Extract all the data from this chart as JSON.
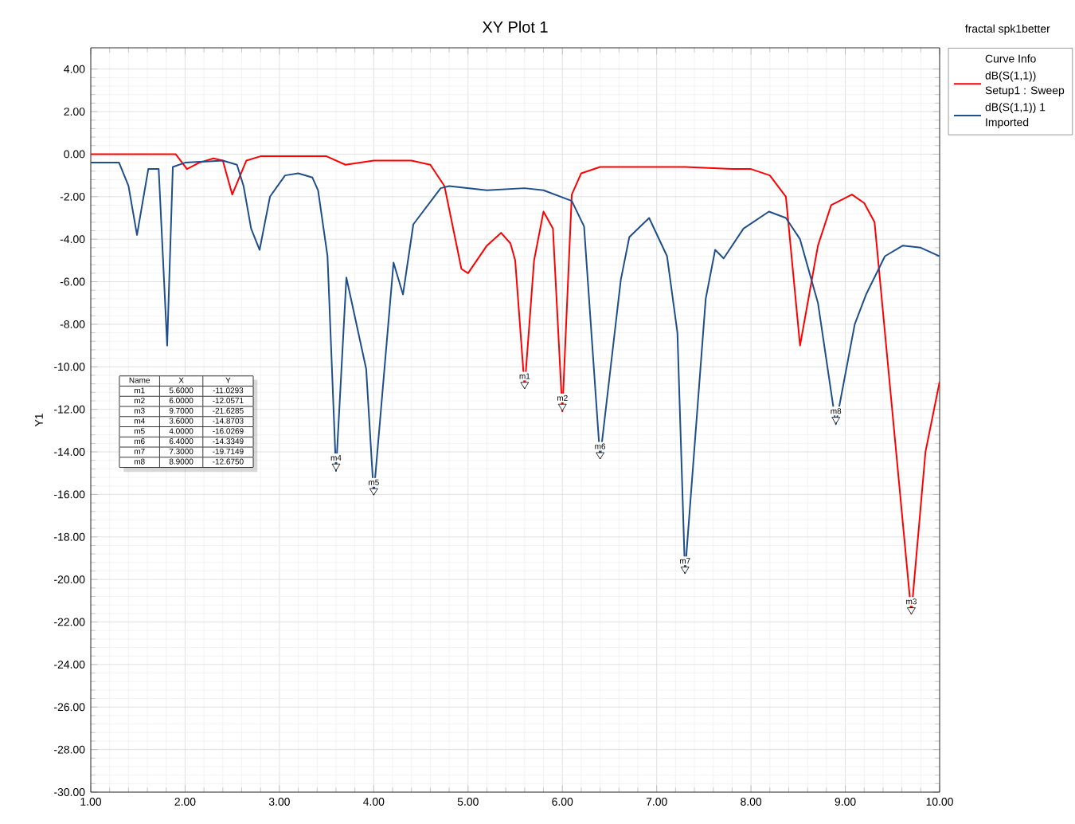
{
  "chart_data": {
    "type": "line",
    "title": "XY Plot 1",
    "ylabel": "Y1",
    "legend_title": "Curve Info",
    "legend": "top right",
    "grid": true,
    "marker": "none",
    "line_style": "solid",
    "xlim": [
      1,
      10
    ],
    "ylim": [
      -30,
      5
    ],
    "xticks": [
      {
        "value": 1,
        "label": "1.00"
      },
      {
        "value": 2,
        "label": "2.00"
      },
      {
        "value": 3,
        "label": "3.00"
      },
      {
        "value": 4,
        "label": "4.00"
      },
      {
        "value": 5,
        "label": "5.00"
      },
      {
        "value": 6,
        "label": "6.00"
      },
      {
        "value": 7,
        "label": "7.00"
      },
      {
        "value": 8,
        "label": "8.00"
      },
      {
        "value": 9,
        "label": "9.00"
      },
      {
        "value": 10,
        "label": "10.00"
      }
    ],
    "yticks": [
      {
        "value": 4,
        "label": "4.00"
      },
      {
        "value": 2,
        "label": "2.00"
      },
      {
        "value": 0,
        "label": "0.00"
      },
      {
        "value": -2,
        "label": "-2.00"
      },
      {
        "value": -4,
        "label": "-4.00"
      },
      {
        "value": -6,
        "label": "-6.00"
      },
      {
        "value": -8,
        "label": "-8.00"
      },
      {
        "value": -10,
        "label": "-10.00"
      },
      {
        "value": -12,
        "label": "-12.00"
      },
      {
        "value": -14,
        "label": "-14.00"
      },
      {
        "value": -16,
        "label": "-16.00"
      },
      {
        "value": -18,
        "label": "-18.00"
      },
      {
        "value": -20,
        "label": "-20.00"
      },
      {
        "value": -22,
        "label": "-22.00"
      },
      {
        "value": -24,
        "label": "-24.00"
      },
      {
        "value": -26,
        "label": "-26.00"
      },
      {
        "value": -28,
        "label": "-28.00"
      },
      {
        "value": -30,
        "label": "-30.00"
      }
    ],
    "series": [
      {
        "name": "dB(S(1,1))",
        "color": "#ff0000",
        "x": [
          1.0,
          1.9,
          2.02,
          2.15,
          2.3,
          2.4,
          2.5,
          2.65,
          2.8,
          3.5,
          3.7,
          4.0,
          4.4,
          4.6,
          4.75,
          4.93,
          5.0,
          5.2,
          5.35,
          5.45,
          5.5,
          5.6,
          5.7,
          5.8,
          5.9,
          6.0,
          6.1,
          6.2,
          6.4,
          7.3,
          7.8,
          8.0,
          8.2,
          8.37,
          8.52,
          8.71,
          8.85,
          9.07,
          9.2,
          9.31,
          9.7,
          9.85,
          10.0
        ],
        "values": [
          0,
          0,
          -0.7,
          -0.4,
          -0.2,
          -0.3,
          -1.9,
          -0.3,
          -0.1,
          -0.1,
          -0.5,
          -0.3,
          -0.3,
          -0.5,
          -1.5,
          -5.4,
          -5.6,
          -4.3,
          -3.7,
          -4.2,
          -5.0,
          -11.0,
          -5.0,
          -2.7,
          -3.5,
          -12.1,
          -1.9,
          -0.9,
          -0.6,
          -0.6,
          -0.7,
          -0.7,
          -1.0,
          -2.0,
          -9.0,
          -4.3,
          -2.4,
          -1.9,
          -2.3,
          -3.2,
          -21.6,
          -14.0,
          -10.7
        ]
      },
      {
        "name": "dB(S(1,1)) 1",
        "color": "#1f4e8c",
        "x": [
          1.0,
          1.3,
          1.4,
          1.49,
          1.61,
          1.72,
          1.81,
          1.87,
          2.0,
          2.4,
          2.55,
          2.62,
          2.7,
          2.79,
          2.9,
          3.06,
          3.2,
          3.35,
          3.41,
          3.51,
          3.6,
          3.71,
          3.92,
          4.0,
          4.21,
          4.31,
          4.42,
          4.71,
          4.8,
          5.2,
          5.6,
          5.8,
          6.1,
          6.23,
          6.4,
          6.62,
          6.71,
          6.92,
          7.11,
          7.22,
          7.3,
          7.52,
          7.62,
          7.71,
          7.92,
          8.19,
          8.37,
          8.52,
          8.71,
          8.9,
          9.1,
          9.22,
          9.42,
          9.61,
          9.8,
          10.0
        ],
        "values": [
          -0.4,
          -0.4,
          -1.5,
          -3.8,
          -0.7,
          -0.7,
          -9.0,
          -0.6,
          -0.4,
          -0.3,
          -0.5,
          -1.5,
          -3.5,
          -4.5,
          -2.0,
          -1.0,
          -0.9,
          -1.1,
          -1.7,
          -4.8,
          -14.9,
          -5.8,
          -10.1,
          -16.0,
          -5.1,
          -6.6,
          -3.3,
          -1.6,
          -1.5,
          -1.7,
          -1.6,
          -1.7,
          -2.2,
          -3.4,
          -14.3,
          -5.9,
          -3.9,
          -3.0,
          -4.8,
          -8.4,
          -19.7,
          -6.8,
          -4.5,
          -4.9,
          -3.5,
          -2.7,
          -3.0,
          -4.0,
          -7.0,
          -12.7,
          -8.0,
          -6.6,
          -4.8,
          -4.3,
          -4.4,
          -4.8
        ]
      }
    ],
    "annotations": [
      "fractal spk1better",
      "Setup1 : Sweep",
      "Imported",
      "Name",
      "X",
      "Y",
      "m1",
      "5.6000",
      "-11.0293",
      "m2",
      "6.0000",
      "-12.0571",
      "m3",
      "9.7000",
      "-21.6285",
      "m4",
      "3.6000",
      "-14.8703",
      "m5",
      "4.0000",
      "-16.0269",
      "m6",
      "6.4000",
      "-14.3349",
      "m7",
      "7.3000",
      "-19.7149",
      "m8",
      "8.9000",
      "-12.6750",
      {
        "text": "m1",
        "x": 5.6,
        "y": -11.0293
      },
      {
        "text": "m2",
        "x": 6.0,
        "y": -12.0571
      },
      {
        "text": "m3",
        "x": 9.7,
        "y": -21.6285
      },
      {
        "text": "m4",
        "x": 3.6,
        "y": -14.8703
      },
      {
        "text": "m5",
        "x": 4.0,
        "y": -16.0269
      },
      {
        "text": "m6",
        "x": 6.4,
        "y": -14.3349
      },
      {
        "text": "m7",
        "x": 7.3,
        "y": -19.7149
      },
      {
        "text": "m8",
        "x": 8.9,
        "y": -12.675
      }
    ]
  }
}
